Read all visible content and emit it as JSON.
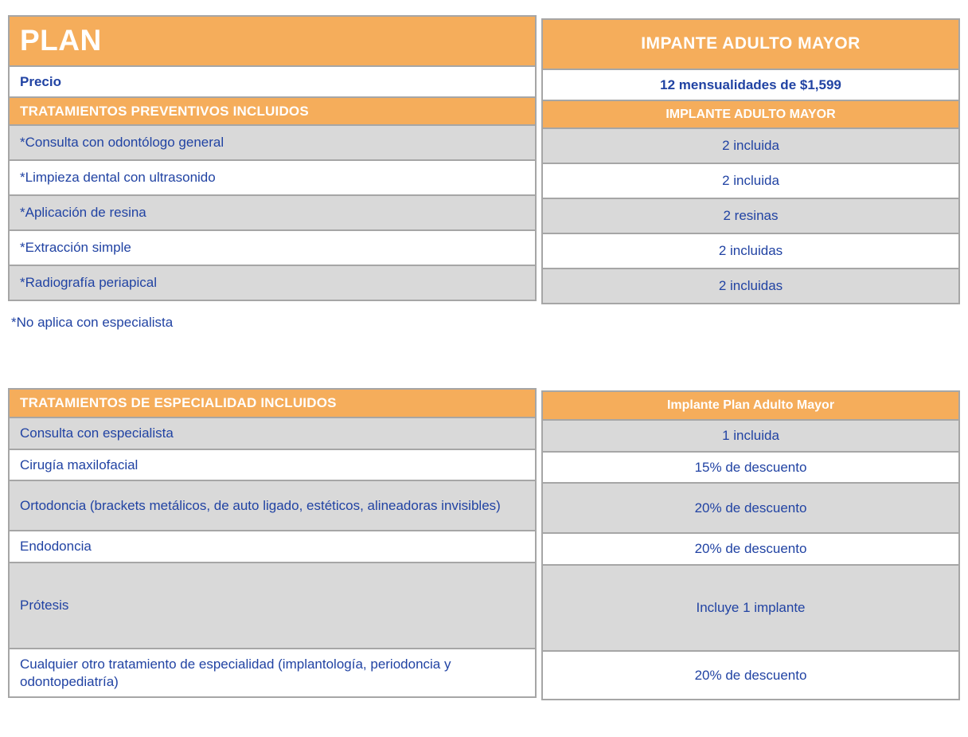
{
  "colors": {
    "header_orange": "#F5AD5B",
    "row_gray": "#D9D9D9",
    "border_gray": "#A6A6A6",
    "text_blue": "#2143A3",
    "header_text": "#FFFFFF"
  },
  "table1": {
    "header": {
      "left": "PLAN",
      "right": "IMPANTE ADULTO MAYOR"
    },
    "price": {
      "label": "Precio",
      "value": "12 mensualidades de $1,599"
    },
    "section": {
      "label": "TRATAMIENTOS PREVENTIVOS INCLUIDOS",
      "value": "IMPLANTE ADULTO MAYOR"
    },
    "rows": [
      {
        "label": "*Consulta con odontólogo general",
        "value": "2 incluida"
      },
      {
        "label": "*Limpieza dental con ultrasonido",
        "value": "2 incluida"
      },
      {
        "label": "*Aplicación de resina",
        "value": "2 resinas"
      },
      {
        "label": "*Extracción simple",
        "value": "2 incluidas"
      },
      {
        "label": "*Radiografía periapical",
        "value": "2 incluidas"
      }
    ],
    "footnote": "*No aplica con especialista"
  },
  "table2": {
    "header": {
      "left": "TRATAMIENTOS DE ESPECIALIDAD INCLUIDOS",
      "right": "Implante Plan Adulto Mayor"
    },
    "rows": [
      {
        "label": "Consulta con especialista",
        "value": "1 incluida"
      },
      {
        "label": "Cirugía maxilofacial",
        "value": "15% de descuento"
      },
      {
        "label": "Ortodoncia (brackets metálicos, de auto ligado, estéticos, alineadoras invisibles)",
        "value": "20% de descuento"
      },
      {
        "label": "Endodoncia",
        "value": "20% de descuento"
      },
      {
        "label": "Prótesis",
        "value": "Incluye 1 implante"
      },
      {
        "label": "Cualquier otro tratamiento  de especialidad (implantología, periodoncia y odontopediatría)",
        "value": "20% de descuento"
      }
    ]
  }
}
